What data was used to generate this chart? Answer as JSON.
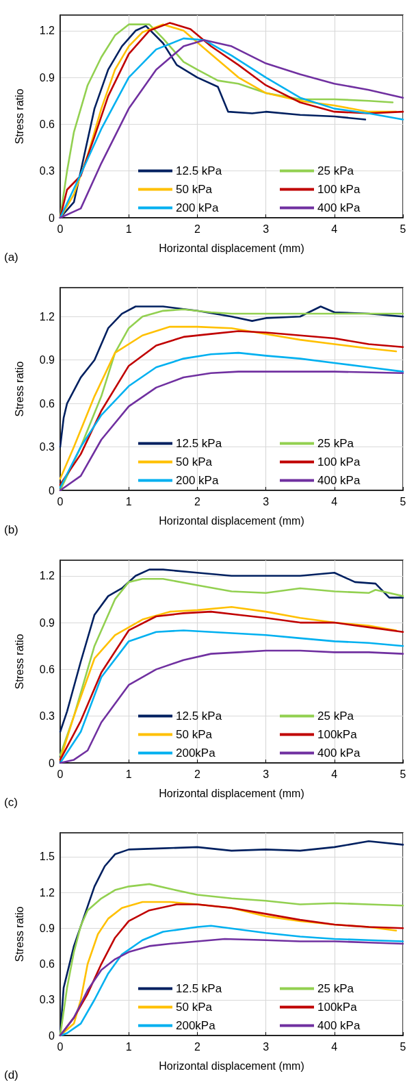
{
  "chart_data": [
    {
      "type": "line",
      "xlabel": "Horizontal displacement (mm)",
      "ylabel": "Stress ratio",
      "annotations": [
        "(a)"
      ],
      "xlim": [
        0,
        5
      ],
      "xticks": [
        0,
        1,
        2,
        3,
        4,
        5
      ],
      "ylim": [
        0,
        1.3
      ],
      "yticks": [
        0,
        0.3,
        0.6,
        0.9,
        1.2
      ],
      "grid": true,
      "legend": "bottom",
      "marker": "none",
      "line_style": "solid",
      "series": [
        {
          "name": "12.5 kPa",
          "color": "#002060",
          "x": [
            0,
            0.2,
            0.3,
            0.5,
            0.7,
            0.9,
            1.1,
            1.25,
            1.5,
            1.7,
            2.0,
            2.3,
            2.45,
            2.8,
            3.0,
            3.5,
            4.0,
            4.45
          ],
          "values": [
            0,
            0.1,
            0.3,
            0.7,
            0.95,
            1.1,
            1.2,
            1.23,
            1.12,
            0.98,
            0.9,
            0.84,
            0.68,
            0.67,
            0.68,
            0.66,
            0.65,
            0.63
          ]
        },
        {
          "name": "25 kPa",
          "color": "#92d050",
          "x": [
            0,
            0.1,
            0.2,
            0.4,
            0.6,
            0.8,
            1.0,
            1.3,
            1.5,
            1.8,
            2.0,
            2.3,
            2.6,
            3.0,
            3.5,
            4.0,
            4.5,
            4.85
          ],
          "values": [
            0,
            0.3,
            0.55,
            0.85,
            1.03,
            1.17,
            1.24,
            1.24,
            1.15,
            1.0,
            0.95,
            0.88,
            0.86,
            0.8,
            0.76,
            0.76,
            0.75,
            0.74
          ]
        },
        {
          "name": "50 kPa",
          "color": "#ffc000",
          "x": [
            0,
            0.2,
            0.4,
            0.6,
            0.8,
            1.0,
            1.2,
            1.5,
            1.8,
            2.2,
            2.6,
            3.0,
            3.5,
            4.0,
            4.5,
            4.9
          ],
          "values": [
            0,
            0.15,
            0.4,
            0.7,
            0.95,
            1.1,
            1.19,
            1.24,
            1.2,
            1.05,
            0.9,
            0.8,
            0.75,
            0.72,
            0.68,
            0.68
          ]
        },
        {
          "name": "100 kPa",
          "color": "#c00000",
          "x": [
            0,
            0.1,
            0.3,
            0.5,
            0.7,
            1.0,
            1.3,
            1.6,
            1.9,
            2.2,
            2.6,
            3.0,
            3.5,
            4.0,
            4.5,
            5.0
          ],
          "values": [
            0,
            0.18,
            0.27,
            0.52,
            0.78,
            1.05,
            1.2,
            1.25,
            1.21,
            1.1,
            0.98,
            0.85,
            0.74,
            0.68,
            0.67,
            0.68
          ]
        },
        {
          "name": "200 kPa",
          "color": "#00b0f0",
          "x": [
            0,
            0.3,
            0.6,
            1.0,
            1.4,
            1.8,
            2.1,
            2.5,
            3.0,
            3.5,
            4.0,
            4.5,
            5.0
          ],
          "values": [
            0,
            0.28,
            0.57,
            0.9,
            1.08,
            1.15,
            1.14,
            1.04,
            0.9,
            0.77,
            0.7,
            0.67,
            0.63
          ]
        },
        {
          "name": "400 kPa",
          "color": "#7030a0",
          "x": [
            0,
            0.3,
            0.6,
            1.0,
            1.4,
            1.8,
            2.1,
            2.5,
            3.0,
            3.5,
            4.0,
            4.5,
            5.0
          ],
          "values": [
            0,
            0.06,
            0.35,
            0.7,
            0.95,
            1.1,
            1.14,
            1.1,
            0.99,
            0.92,
            0.86,
            0.82,
            0.77
          ]
        }
      ]
    },
    {
      "type": "line",
      "xlabel": "Horizontal displacement (mm)",
      "ylabel": "Stress ratio",
      "annotations": [
        "(b)"
      ],
      "xlim": [
        0,
        5
      ],
      "xticks": [
        0,
        1,
        2,
        3,
        4,
        5
      ],
      "ylim": [
        0,
        1.4
      ],
      "yticks": [
        0,
        0.3,
        0.6,
        0.9,
        1.2
      ],
      "grid": true,
      "legend": "bottom",
      "marker": "none",
      "line_style": "solid",
      "series": [
        {
          "name": "12.5 kPa",
          "color": "#002060",
          "x": [
            0,
            0.05,
            0.1,
            0.3,
            0.5,
            0.7,
            0.9,
            1.1,
            1.5,
            2.0,
            2.5,
            2.8,
            3.0,
            3.5,
            3.8,
            4.0,
            4.5,
            5.0
          ],
          "values": [
            0.3,
            0.5,
            0.6,
            0.78,
            0.9,
            1.12,
            1.22,
            1.27,
            1.27,
            1.24,
            1.2,
            1.17,
            1.19,
            1.2,
            1.27,
            1.23,
            1.22,
            1.2
          ]
        },
        {
          "name": "25 kPa",
          "color": "#92d050",
          "x": [
            0,
            0.3,
            0.6,
            0.8,
            1.0,
            1.2,
            1.5,
            1.8,
            2.2,
            2.5,
            3.0,
            4.0,
            5.0
          ],
          "values": [
            0,
            0.3,
            0.65,
            0.95,
            1.12,
            1.2,
            1.24,
            1.25,
            1.23,
            1.22,
            1.22,
            1.22,
            1.22
          ]
        },
        {
          "name": "50 kPa",
          "color": "#ffc000",
          "x": [
            0,
            0.2,
            0.5,
            0.8,
            1.2,
            1.6,
            2.0,
            2.5,
            3.0,
            3.5,
            4.0,
            4.5,
            4.9
          ],
          "values": [
            0.08,
            0.3,
            0.65,
            0.95,
            1.07,
            1.13,
            1.13,
            1.12,
            1.08,
            1.04,
            1.01,
            0.98,
            0.96
          ]
        },
        {
          "name": "100 kPa",
          "color": "#c00000",
          "x": [
            0,
            0.3,
            0.6,
            1.0,
            1.4,
            1.8,
            2.2,
            2.6,
            3.0,
            3.5,
            4.0,
            4.5,
            5.0
          ],
          "values": [
            0.04,
            0.25,
            0.55,
            0.86,
            1.0,
            1.06,
            1.08,
            1.1,
            1.09,
            1.07,
            1.05,
            1.01,
            0.99
          ]
        },
        {
          "name": "200 kPa",
          "color": "#00b0f0",
          "x": [
            0,
            0.3,
            0.6,
            1.0,
            1.4,
            1.8,
            2.2,
            2.6,
            3.0,
            3.5,
            4.0,
            4.5,
            5.0
          ],
          "values": [
            0.02,
            0.3,
            0.52,
            0.72,
            0.85,
            0.91,
            0.94,
            0.95,
            0.93,
            0.91,
            0.88,
            0.85,
            0.82
          ]
        },
        {
          "name": "400 kPa",
          "color": "#7030a0",
          "x": [
            0,
            0.3,
            0.6,
            1.0,
            1.4,
            1.8,
            2.2,
            2.6,
            3.0,
            4.0,
            5.0
          ],
          "values": [
            0,
            0.1,
            0.35,
            0.58,
            0.71,
            0.78,
            0.81,
            0.82,
            0.82,
            0.82,
            0.81
          ]
        }
      ]
    },
    {
      "type": "line",
      "xlabel": "Horizontal displacement (mm)",
      "ylabel": "Stress ratio",
      "annotations": [
        "(c)"
      ],
      "xlim": [
        0,
        5
      ],
      "xticks": [
        0,
        1,
        2,
        3,
        4,
        5
      ],
      "ylim": [
        0,
        1.3
      ],
      "yticks": [
        0,
        0.3,
        0.6,
        0.9,
        1.2
      ],
      "grid": true,
      "legend": "bottom",
      "marker": "none",
      "line_style": "solid",
      "series": [
        {
          "name": "12.5 kPa",
          "color": "#002060",
          "x": [
            0,
            0.1,
            0.3,
            0.5,
            0.7,
            0.9,
            1.1,
            1.3,
            1.5,
            2.0,
            2.5,
            3.0,
            3.5,
            4.0,
            4.3,
            4.6,
            4.8,
            5.0
          ],
          "values": [
            0.2,
            0.33,
            0.65,
            0.95,
            1.07,
            1.12,
            1.2,
            1.24,
            1.24,
            1.22,
            1.2,
            1.2,
            1.2,
            1.22,
            1.16,
            1.15,
            1.06,
            1.06
          ]
        },
        {
          "name": "25 kPa",
          "color": "#92d050",
          "x": [
            0,
            0.2,
            0.5,
            0.8,
            1.0,
            1.2,
            1.5,
            2.0,
            2.5,
            3.0,
            3.5,
            4.0,
            4.5,
            4.6,
            5.0
          ],
          "values": [
            0.05,
            0.3,
            0.75,
            1.05,
            1.16,
            1.18,
            1.18,
            1.14,
            1.1,
            1.09,
            1.12,
            1.1,
            1.09,
            1.11,
            1.07
          ]
        },
        {
          "name": "50 kPa",
          "color": "#ffc000",
          "x": [
            0,
            0.2,
            0.5,
            0.8,
            1.2,
            1.6,
            2.0,
            2.5,
            3.0,
            3.5,
            4.0,
            4.5,
            4.9
          ],
          "values": [
            0.02,
            0.3,
            0.67,
            0.82,
            0.92,
            0.97,
            0.98,
            1.0,
            0.97,
            0.93,
            0.9,
            0.88,
            0.85
          ]
        },
        {
          "name": "100kPa",
          "color": "#c00000",
          "x": [
            0,
            0.3,
            0.6,
            1.0,
            1.4,
            1.8,
            2.2,
            2.6,
            3.0,
            3.5,
            4.0,
            4.5,
            5.0
          ],
          "values": [
            0.02,
            0.27,
            0.58,
            0.85,
            0.94,
            0.96,
            0.97,
            0.95,
            0.93,
            0.9,
            0.9,
            0.87,
            0.84
          ]
        },
        {
          "name": "200kPa",
          "color": "#00b0f0",
          "x": [
            0,
            0.3,
            0.6,
            1.0,
            1.4,
            1.8,
            2.2,
            2.6,
            3.0,
            3.5,
            4.0,
            4.5,
            5.0
          ],
          "values": [
            0,
            0.2,
            0.55,
            0.78,
            0.84,
            0.85,
            0.84,
            0.83,
            0.82,
            0.8,
            0.78,
            0.77,
            0.75
          ]
        },
        {
          "name": "400 kPa",
          "color": "#7030a0",
          "x": [
            0,
            0.2,
            0.4,
            0.6,
            1.0,
            1.4,
            1.8,
            2.2,
            2.6,
            3.0,
            3.5,
            4.0,
            4.5,
            5.0
          ],
          "values": [
            0,
            0.02,
            0.08,
            0.26,
            0.5,
            0.6,
            0.66,
            0.7,
            0.71,
            0.72,
            0.72,
            0.71,
            0.71,
            0.7
          ]
        }
      ]
    },
    {
      "type": "line",
      "xlabel": "Horizontal displacement (mm)",
      "ylabel": "Stress ratio",
      "annotations": [
        "(d)"
      ],
      "xlim": [
        0,
        5
      ],
      "xticks": [
        0,
        1,
        2,
        3,
        4,
        5
      ],
      "ylim": [
        0,
        1.7
      ],
      "yticks": [
        0,
        0.3,
        0.6,
        0.9,
        1.2,
        1.5
      ],
      "grid": true,
      "legend": "bottom",
      "marker": "none",
      "line_style": "solid",
      "series": [
        {
          "name": "12.5 kPa",
          "color": "#002060",
          "x": [
            0,
            0.05,
            0.2,
            0.35,
            0.5,
            0.65,
            0.8,
            1.0,
            1.5,
            2.0,
            2.5,
            3.0,
            3.5,
            4.0,
            4.5,
            5.0
          ],
          "values": [
            0,
            0.4,
            0.75,
            1.0,
            1.25,
            1.42,
            1.52,
            1.56,
            1.57,
            1.58,
            1.55,
            1.56,
            1.55,
            1.58,
            1.63,
            1.6
          ]
        },
        {
          "name": "25 kPa",
          "color": "#92d050",
          "x": [
            0,
            0.1,
            0.2,
            0.3,
            0.4,
            0.6,
            0.8,
            1.0,
            1.3,
            1.6,
            2.0,
            2.5,
            3.0,
            3.5,
            4.0,
            4.5,
            5.0
          ],
          "values": [
            0,
            0.4,
            0.7,
            0.92,
            1.05,
            1.15,
            1.22,
            1.25,
            1.27,
            1.23,
            1.18,
            1.15,
            1.13,
            1.1,
            1.11,
            1.1,
            1.09
          ]
        },
        {
          "name": "50 kPa",
          "color": "#ffc000",
          "x": [
            0,
            0.2,
            0.3,
            0.4,
            0.55,
            0.7,
            0.9,
            1.2,
            1.6,
            2.0,
            2.5,
            3.0,
            3.5,
            4.0,
            4.5,
            4.9
          ],
          "values": [
            0,
            0.1,
            0.3,
            0.6,
            0.85,
            0.98,
            1.07,
            1.12,
            1.12,
            1.1,
            1.07,
            1.0,
            0.96,
            0.93,
            0.91,
            0.88
          ]
        },
        {
          "name": "100kPa",
          "color": "#c00000",
          "x": [
            0,
            0.2,
            0.4,
            0.6,
            0.8,
            1.0,
            1.3,
            1.7,
            2.0,
            2.5,
            3.0,
            3.5,
            4.0,
            4.5,
            5.0
          ],
          "values": [
            0,
            0.15,
            0.35,
            0.6,
            0.82,
            0.96,
            1.05,
            1.1,
            1.1,
            1.07,
            1.02,
            0.97,
            0.93,
            0.91,
            0.9
          ]
        },
        {
          "name": "200kPa",
          "color": "#00b0f0",
          "x": [
            0,
            0.1,
            0.3,
            0.5,
            0.7,
            0.9,
            1.2,
            1.5,
            2.0,
            2.2,
            2.6,
            3.0,
            3.5,
            4.0,
            4.5,
            5.0
          ],
          "values": [
            0,
            0.02,
            0.1,
            0.3,
            0.52,
            0.68,
            0.8,
            0.87,
            0.91,
            0.92,
            0.89,
            0.86,
            0.83,
            0.81,
            0.8,
            0.79
          ]
        },
        {
          "name": "400 kPa",
          "color": "#7030a0",
          "x": [
            0,
            0.2,
            0.4,
            0.6,
            0.8,
            1.0,
            1.3,
            1.6,
            2.0,
            2.4,
            3.0,
            3.5,
            4.0,
            4.5,
            5.0
          ],
          "values": [
            0,
            0.15,
            0.38,
            0.55,
            0.64,
            0.7,
            0.75,
            0.77,
            0.79,
            0.81,
            0.8,
            0.79,
            0.79,
            0.78,
            0.77
          ]
        }
      ]
    }
  ]
}
